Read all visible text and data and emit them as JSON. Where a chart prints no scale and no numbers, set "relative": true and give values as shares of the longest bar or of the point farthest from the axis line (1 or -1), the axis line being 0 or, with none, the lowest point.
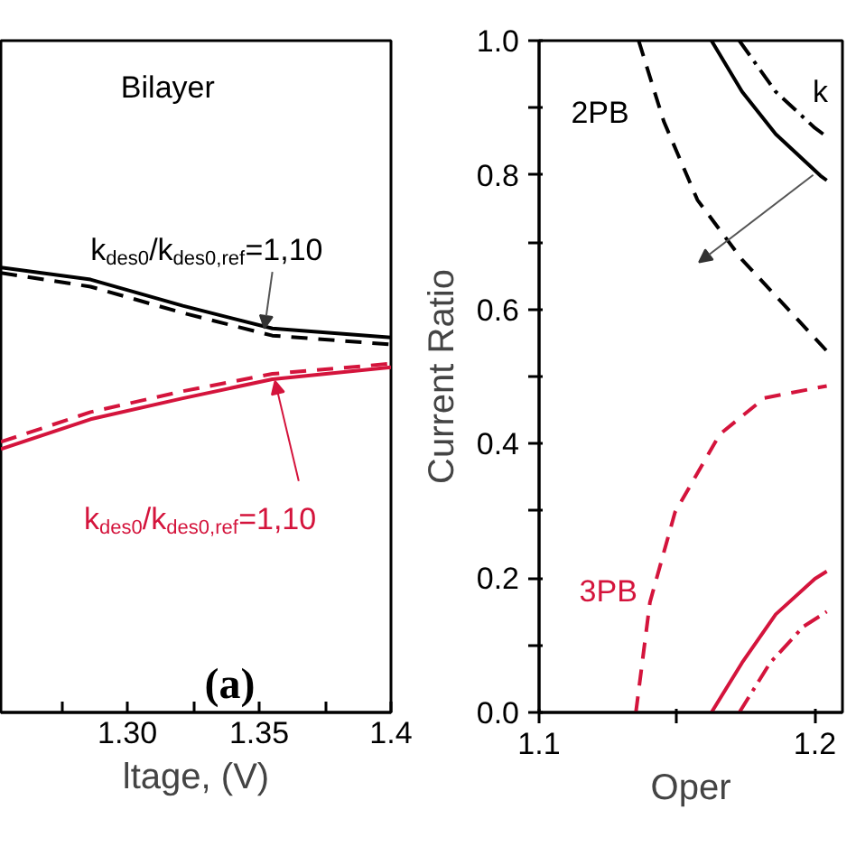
{
  "chart_data": [
    {
      "type": "line",
      "relative": true,
      "xlabel": "ltage, (V)",
      "xlim": [
        1.252,
        1.4
      ],
      "xticks": [
        {
          "value": 1.275,
          "label": null
        },
        {
          "value": 1.3,
          "label": "1.30"
        },
        {
          "value": 1.325,
          "label": null
        },
        {
          "value": 1.35,
          "label": "1.35"
        },
        {
          "value": 1.375,
          "label": null
        },
        {
          "value": 1.4,
          "label": "1.4"
        }
      ],
      "tick_labels": "x",
      "x": [
        1.252,
        1.286,
        1.321,
        1.355,
        1.4
      ],
      "series": [
        {
          "color": "#000000",
          "line_style": "solid",
          "values": [
            1,
            0.973,
            0.914,
            0.863,
            0.843
          ]
        },
        {
          "color": "#000000",
          "line_style": "dashed",
          "values": [
            0.988,
            0.957,
            0.898,
            0.847,
            0.827
          ]
        },
        {
          "color": "#d4143c",
          "line_style": "solid",
          "values": [
            0.592,
            0.659,
            0.706,
            0.749,
            0.776
          ]
        },
        {
          "color": "#d4143c",
          "line_style": "dashed",
          "values": [
            0.608,
            0.675,
            0.722,
            0.761,
            0.784
          ]
        }
      ],
      "annotations": [
        "Bilayer",
        {
          "text": "k$_{des0}$/k$_{des0,ref}$=1,10",
          "x": 1.352,
          "y": 0.863
        },
        {
          "text": "k$_{des0}$/k$_{des0,ref}$=1,10",
          "x": 1.356,
          "y": 0.745
        },
        "(a)"
      ]
    },
    {
      "type": "line",
      "xlabel": "Oper",
      "ylabel": "Current Ratio",
      "xlim": [
        1.1,
        1.21
      ],
      "ylim": [
        0,
        1
      ],
      "xticks": [
        1.1,
        {
          "value": 1.15,
          "label": null
        },
        1.2
      ],
      "yticks": [
        {
          "value": 0,
          "label": "0.0"
        },
        {
          "value": 0.1,
          "label": null
        },
        0.2,
        {
          "value": 0.3,
          "label": null
        },
        0.4,
        {
          "value": 0.5,
          "label": null
        },
        0.6,
        {
          "value": 0.7,
          "label": null
        },
        0.8,
        {
          "value": 0.9,
          "label": null
        },
        {
          "value": 1,
          "label": "1.0"
        }
      ],
      "series": [
        {
          "color": "#000000",
          "line_style": "dashed",
          "x": [
            1.1361,
            1.1452,
            1.1574,
            1.1736,
            1.1899,
            1.2041
          ],
          "values": [
            1.0,
            0.88,
            0.763,
            0.674,
            0.602,
            0.539
          ]
        },
        {
          "color": "#000000",
          "line_style": "solid",
          "x": [
            1.1625,
            1.1736,
            1.1858,
            1.202,
            1.2043
          ],
          "values": [
            1.0,
            0.924,
            0.861,
            0.799,
            0.792
          ]
        },
        {
          "color": "#000000",
          "line_style": "dashdot",
          "x": [
            1.1726,
            1.1858,
            1.2,
            1.2043
          ],
          "values": [
            1.0,
            0.924,
            0.87,
            0.857
          ]
        },
        {
          "color": "#d4143c",
          "line_style": "dashed",
          "x": [
            1.1351,
            1.1402,
            1.1493,
            1.1655,
            1.1817,
            1.2043
          ],
          "values": [
            0,
            0.164,
            0.298,
            0.414,
            0.468,
            0.486
          ]
        },
        {
          "color": "#d4143c",
          "line_style": "solid",
          "x": [
            1.1625,
            1.1736,
            1.1858,
            1.2,
            1.2043
          ],
          "values": [
            0,
            0.074,
            0.146,
            0.199,
            0.21
          ]
        },
        {
          "color": "#d4143c",
          "line_style": "dashdot",
          "x": [
            1.1726,
            1.1838,
            1.1959,
            1.2043
          ],
          "values": [
            0,
            0.074,
            0.128,
            0.15
          ]
        }
      ],
      "annotations": [
        "2PB",
        "3PB",
        "k"
      ]
    }
  ]
}
